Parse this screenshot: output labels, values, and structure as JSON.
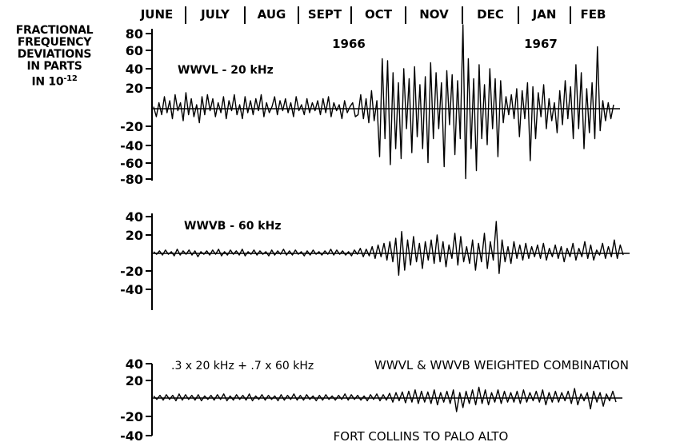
{
  "ylabel_lines": [
    "FRACTIONAL",
    "FREQUENCY",
    "DEVIATIONS",
    "IN  PARTS",
    "IN 10",
    "-12"
  ],
  "chart_data": [
    {
      "type": "line",
      "panel": "top",
      "label": "WWVL - 20 kHz",
      "months": [
        "JUNE",
        "JULY",
        "AUG",
        "SEPT",
        "OCT",
        "NOV",
        "DEC",
        "JAN",
        "FEB"
      ],
      "years": [
        "1966",
        "1967"
      ],
      "yticks": [
        "80",
        "60",
        "40",
        "20",
        "-20",
        "-40",
        "-60",
        "-80"
      ],
      "ylim": [
        -80,
        80
      ],
      "color": "#000000",
      "series": [
        {
          "values": [
            2,
            -8,
            6,
            -6,
            12,
            -4,
            8,
            -10,
            14,
            -2,
            6,
            -12,
            16,
            -6,
            10,
            -8,
            4,
            -14,
            12,
            -6,
            14,
            -2,
            10,
            -8,
            6,
            -4,
            12,
            -10,
            8,
            -2,
            14,
            -6,
            4,
            -10,
            12,
            -4,
            8,
            -6,
            10,
            -2,
            14,
            -8,
            6,
            -4,
            2,
            12,
            -6,
            8,
            -2,
            10,
            -4,
            6,
            -8,
            12,
            -2,
            4,
            -6,
            10,
            -4,
            6,
            -2,
            8,
            -6,
            10,
            -4,
            12,
            -8,
            6,
            -2,
            4,
            -10,
            8,
            -4,
            2,
            6,
            -8,
            -6,
            14,
            -10,
            10,
            -14,
            18,
            -12,
            8,
            -48,
            50,
            -30,
            48,
            -56,
            36,
            -40,
            26,
            -50,
            40,
            -20,
            30,
            -44,
            42,
            -28,
            24,
            -40,
            32,
            -54,
            46,
            -30,
            36,
            -20,
            26,
            -58,
            38,
            -16,
            34,
            -46,
            28,
            -30,
            84,
            -70,
            50,
            -40,
            30,
            -62,
            44,
            -30,
            24,
            -36,
            40,
            -20,
            30,
            -48,
            28,
            -14,
            12,
            -6,
            14,
            -10,
            20,
            -28,
            18,
            -10,
            26,
            -52,
            22,
            -30,
            16,
            -8,
            24,
            -20,
            10,
            -12,
            6,
            -24,
            18,
            -16,
            28,
            -10,
            22,
            -30,
            44,
            -20,
            36,
            -40,
            20,
            -24,
            26,
            -30,
            62,
            -22,
            8,
            -12,
            6,
            -10,
            4
          ]
        }
      ]
    },
    {
      "type": "line",
      "panel": "middle",
      "label": "WWVB - 60 kHz",
      "yticks": [
        "40",
        "20",
        "-20",
        "-40"
      ],
      "ylim": [
        -40,
        40
      ],
      "color": "#000000",
      "series": [
        {
          "values": [
            2,
            -1,
            3,
            -2,
            4,
            -1,
            2,
            -3,
            5,
            -2,
            3,
            -1,
            4,
            -2,
            3,
            -4,
            2,
            -1,
            3,
            -2,
            4,
            -1,
            5,
            -3,
            2,
            -2,
            4,
            -1,
            3,
            -2,
            5,
            -3,
            2,
            -1,
            4,
            -2,
            3,
            -1,
            2,
            -3,
            4,
            -2,
            3,
            -1,
            5,
            -2,
            3,
            -2,
            4,
            -1,
            2,
            -3,
            3,
            -2,
            4,
            -1,
            2,
            -2,
            3,
            -1,
            5,
            -2,
            4,
            -1,
            3,
            -2,
            2,
            -3,
            4,
            -1,
            6,
            -4,
            5,
            -3,
            8,
            -6,
            10,
            -4,
            12,
            -8,
            14,
            -10,
            18,
            -26,
            26,
            -20,
            16,
            -14,
            20,
            -10,
            12,
            -18,
            14,
            -8,
            16,
            -12,
            22,
            -10,
            14,
            -16,
            10,
            -6,
            24,
            -14,
            20,
            -10,
            8,
            -12,
            16,
            -20,
            12,
            -10,
            24,
            -18,
            14,
            -8,
            38,
            -24,
            16,
            -10,
            8,
            -12,
            14,
            -6,
            10,
            -8,
            12,
            -6,
            8,
            -4,
            10,
            -6,
            12,
            -8,
            6,
            -4,
            10,
            -6,
            8,
            -10,
            6,
            -4,
            12,
            -8,
            6,
            -4,
            14,
            -6,
            10,
            -8,
            4,
            -2,
            12,
            -6,
            8,
            -4,
            16,
            -6,
            10,
            -2
          ]
        }
      ]
    },
    {
      "type": "line",
      "panel": "bottom",
      "label": ".3 x 20 kHz + .7 x 60 kHz",
      "label2": "WWVL &  WWVB WEIGHTED COMBINATION",
      "yticks": [
        "40",
        "20",
        "-20",
        "-40"
      ],
      "ylim": [
        -40,
        40
      ],
      "caption": "FORT COLLINS TO PALO ALTO",
      "color": "#000000",
      "series": [
        {
          "values": [
            3,
            -2,
            4,
            -3,
            5,
            -2,
            4,
            -4,
            6,
            -3,
            5,
            -2,
            4,
            -3,
            5,
            -4,
            3,
            -2,
            4,
            -3,
            5,
            -2,
            6,
            -4,
            3,
            -3,
            5,
            -2,
            4,
            -3,
            6,
            -4,
            3,
            -2,
            5,
            -3,
            4,
            -2,
            3,
            -4,
            5,
            -3,
            4,
            -2,
            6,
            -3,
            4,
            -3,
            5,
            -2,
            3,
            -4,
            4,
            -3,
            5,
            -2,
            3,
            -3,
            4,
            -2,
            6,
            -3,
            5,
            -2,
            4,
            -3,
            3,
            -4,
            5,
            -2,
            6,
            -4,
            5,
            -3,
            7,
            -6,
            8,
            -4,
            9,
            -7,
            10,
            -6,
            12,
            -8,
            10,
            -6,
            9,
            -8,
            12,
            -10,
            8,
            -6,
            10,
            -8,
            12,
            -20,
            8,
            -14,
            10,
            -8,
            12,
            -10,
            16,
            -8,
            12,
            -10,
            8,
            -6,
            12,
            -8,
            10,
            -6,
            8,
            -6,
            10,
            -8,
            12,
            -6,
            8,
            -4,
            10,
            -6,
            12,
            -10,
            8,
            -6,
            10,
            -6,
            8,
            -4,
            10,
            -8,
            14,
            -10,
            6,
            -4,
            8,
            -16,
            10,
            -6,
            8,
            -12,
            6,
            -4,
            10,
            -6
          ]
        }
      ]
    }
  ]
}
